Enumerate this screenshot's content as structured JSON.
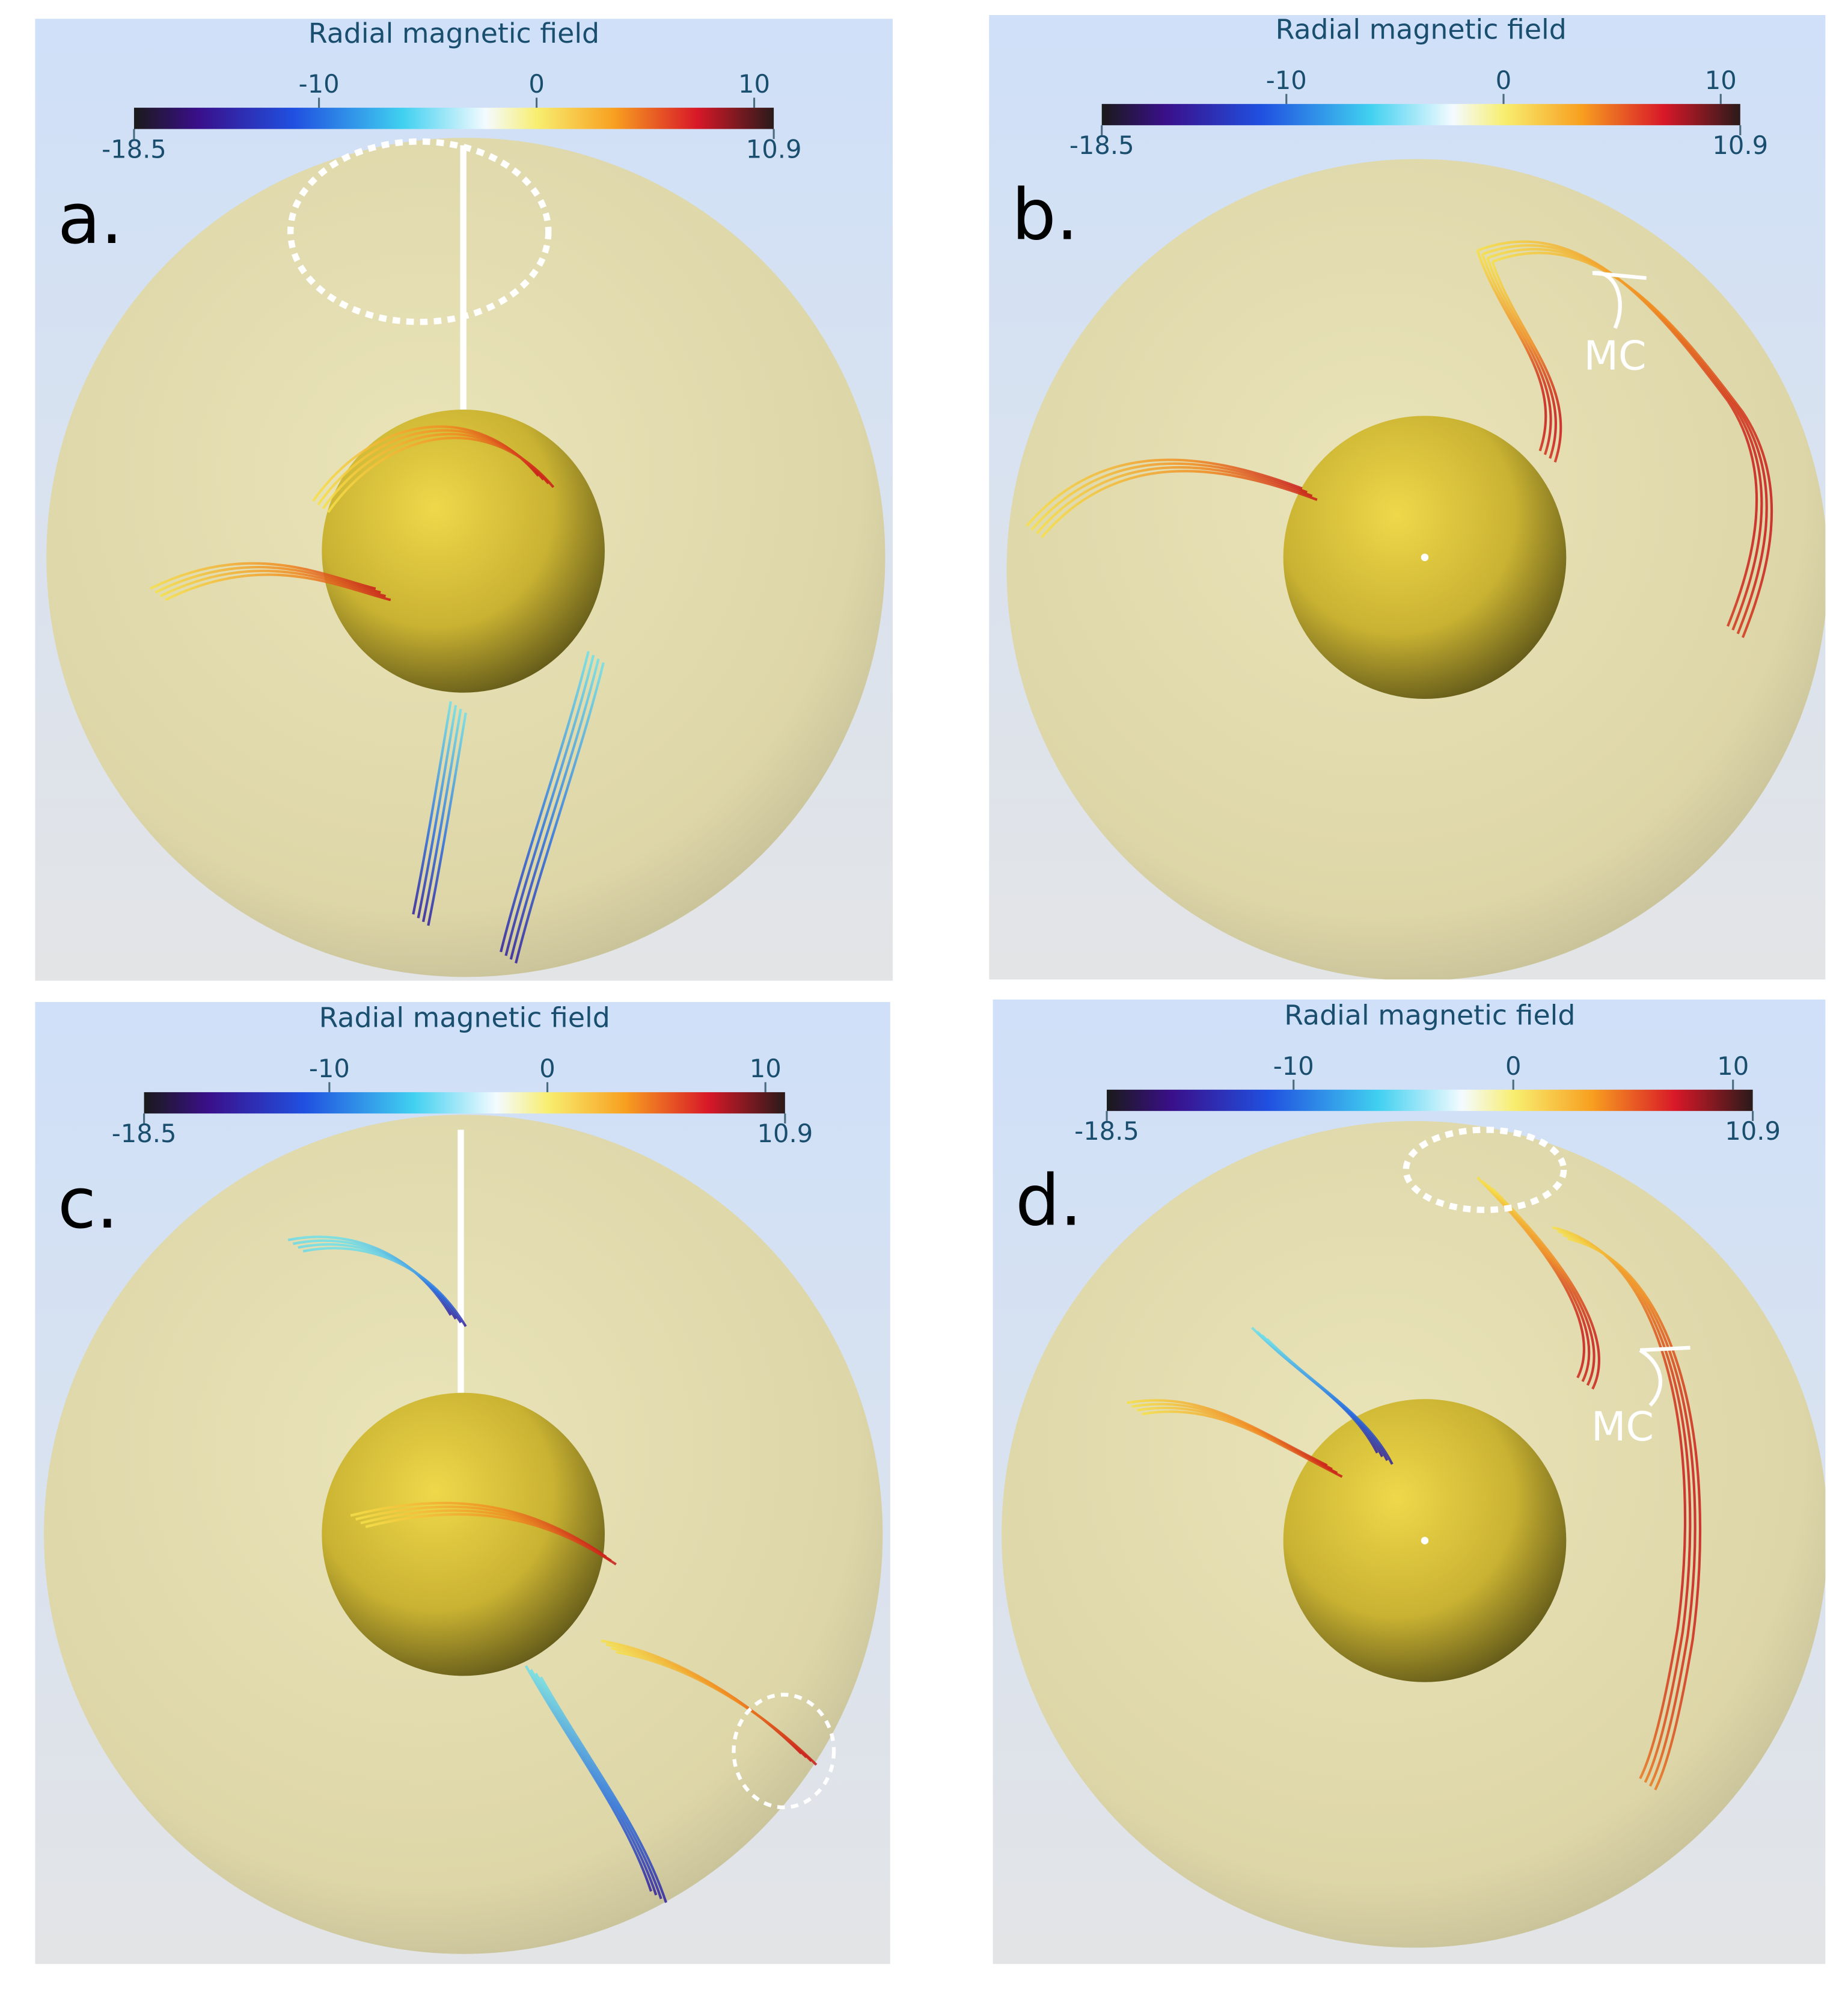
{
  "panels": [
    {
      "label": "a.",
      "colorbar": {
        "title": "Radial magnetic field",
        "range": [
          -18.5,
          10.9
        ],
        "ticks": [
          -10,
          0,
          10
        ]
      }
    },
    {
      "label": "b.",
      "colorbar": {
        "title": "Radial magnetic field",
        "range": [
          -18.5,
          10.9
        ],
        "ticks": [
          -10,
          0,
          10
        ]
      },
      "annotation": "MC"
    },
    {
      "label": "c.",
      "colorbar": {
        "title": "Radial magnetic field",
        "range": [
          -18.5,
          10.9
        ],
        "ticks": [
          -10,
          0,
          10
        ]
      }
    },
    {
      "label": "d.",
      "colorbar": {
        "title": "Radial magnetic field",
        "range": [
          -18.5,
          10.9
        ],
        "ticks": [
          -10,
          0,
          10
        ]
      },
      "annotation": "MC"
    }
  ]
}
